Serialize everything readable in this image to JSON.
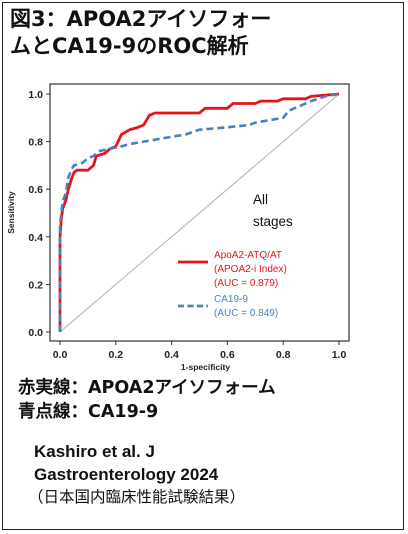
{
  "title": {
    "line1": "図3：APOA2アイソフォー",
    "line2": "ムとCA19-9のROC解析"
  },
  "legend_text": {
    "red": "赤実線：APOA2アイソフォーム",
    "blue": "青点線：CA19-9"
  },
  "citation": {
    "line1": "Kashiro et al. J",
    "line2": "Gastroenterology  2024",
    "line3": "（日本国内臨床性能試験結果）"
  },
  "chart_data": {
    "type": "line",
    "xlabel": "1-specificity",
    "ylabel": "Sensitivity",
    "xlim": [
      0,
      1
    ],
    "ylim": [
      0,
      1
    ],
    "xticks": [
      "0.0",
      "0.2",
      "0.4",
      "0.6",
      "0.8",
      "1.0"
    ],
    "yticks": [
      "0.0",
      "0.2",
      "0.4",
      "0.6",
      "0.8",
      "1.0"
    ],
    "annotation": [
      "All",
      "stages"
    ],
    "legend_placement": "bottom-right",
    "colors": {
      "apoa2": "#e8121b",
      "ca199": "#4a7fc1",
      "diagonal": "#b0b0b0"
    },
    "series": [
      {
        "name": "ApoA2-ATQ/AT (APOA2-i Index)",
        "legend_lines": [
          "ApoA2-ATQ/AT",
          "(APOA2-i Index)",
          "(AUC = 0.879)"
        ],
        "auc": 0.879,
        "style": "solid",
        "color": "#e8121b",
        "points": [
          [
            0,
            0
          ],
          [
            0,
            0.4
          ],
          [
            0.005,
            0.48
          ],
          [
            0.01,
            0.52
          ],
          [
            0.02,
            0.55
          ],
          [
            0.03,
            0.6
          ],
          [
            0.04,
            0.64
          ],
          [
            0.05,
            0.67
          ],
          [
            0.06,
            0.68
          ],
          [
            0.1,
            0.68
          ],
          [
            0.12,
            0.7
          ],
          [
            0.13,
            0.74
          ],
          [
            0.16,
            0.75
          ],
          [
            0.18,
            0.77
          ],
          [
            0.2,
            0.78
          ],
          [
            0.22,
            0.83
          ],
          [
            0.25,
            0.85
          ],
          [
            0.28,
            0.86
          ],
          [
            0.3,
            0.87
          ],
          [
            0.31,
            0.89
          ],
          [
            0.32,
            0.91
          ],
          [
            0.34,
            0.92
          ],
          [
            0.5,
            0.92
          ],
          [
            0.52,
            0.94
          ],
          [
            0.6,
            0.94
          ],
          [
            0.62,
            0.96
          ],
          [
            0.7,
            0.96
          ],
          [
            0.72,
            0.97
          ],
          [
            0.78,
            0.97
          ],
          [
            0.8,
            0.98
          ],
          [
            0.88,
            0.98
          ],
          [
            0.9,
            0.99
          ],
          [
            1.0,
            1.0
          ]
        ]
      },
      {
        "name": "CA19-9",
        "legend_lines": [
          "CA19-9",
          "(AUC = 0.849)"
        ],
        "auc": 0.849,
        "style": "dashed",
        "color": "#4a7fc1",
        "points": [
          [
            0,
            0
          ],
          [
            0,
            0.45
          ],
          [
            0.01,
            0.55
          ],
          [
            0.02,
            0.58
          ],
          [
            0.03,
            0.65
          ],
          [
            0.04,
            0.68
          ],
          [
            0.05,
            0.7
          ],
          [
            0.08,
            0.71
          ],
          [
            0.1,
            0.73
          ],
          [
            0.12,
            0.74
          ],
          [
            0.14,
            0.76
          ],
          [
            0.18,
            0.77
          ],
          [
            0.22,
            0.78
          ],
          [
            0.25,
            0.79
          ],
          [
            0.3,
            0.8
          ],
          [
            0.35,
            0.81
          ],
          [
            0.4,
            0.82
          ],
          [
            0.45,
            0.83
          ],
          [
            0.5,
            0.85
          ],
          [
            0.6,
            0.86
          ],
          [
            0.68,
            0.87
          ],
          [
            0.7,
            0.88
          ],
          [
            0.75,
            0.89
          ],
          [
            0.8,
            0.9
          ],
          [
            0.82,
            0.93
          ],
          [
            0.86,
            0.95
          ],
          [
            0.9,
            0.97
          ],
          [
            0.95,
            0.99
          ],
          [
            1.0,
            1.0
          ]
        ]
      }
    ]
  }
}
